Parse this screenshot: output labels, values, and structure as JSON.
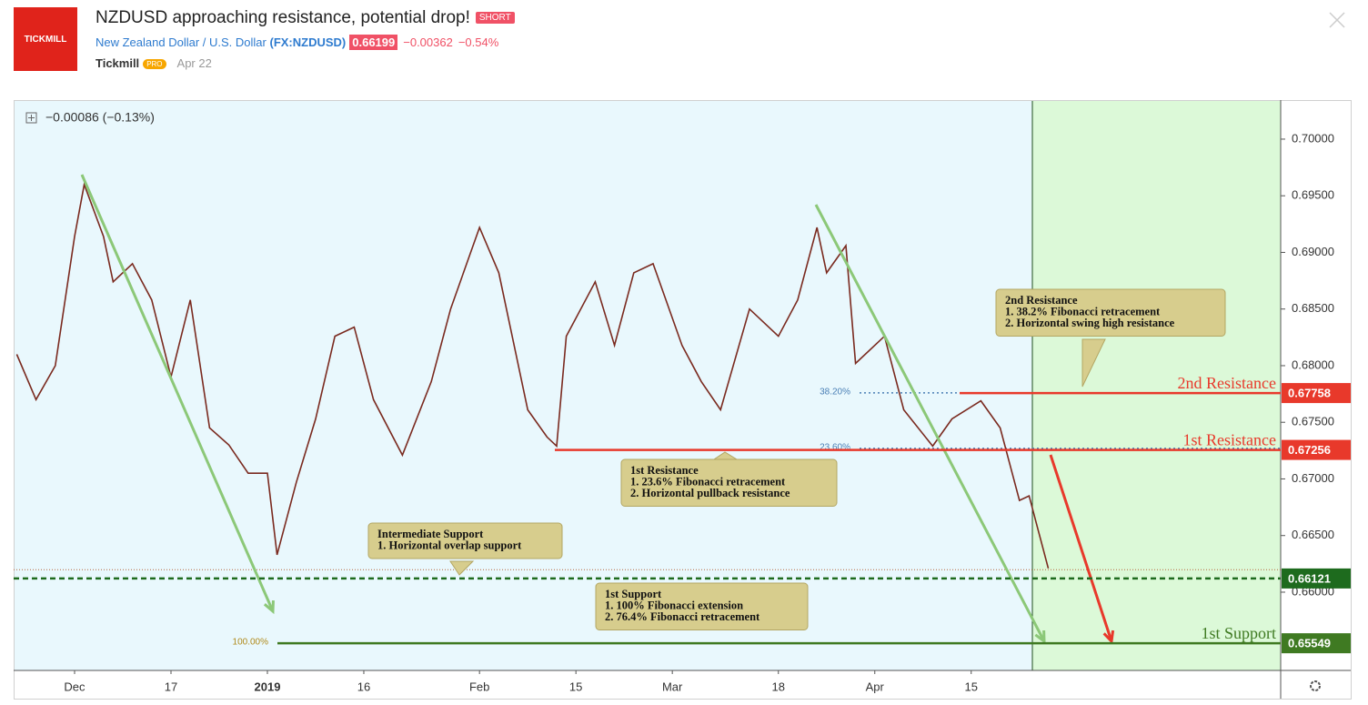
{
  "header": {
    "logo": "TICKMILL",
    "title": "NZDUSD approaching resistance, potential drop!",
    "tag": "SHORT",
    "symbol": "New Zealand Dollar / U.S. Dollar",
    "ticker": "(FX:NZDUSD)",
    "price": "0.66199",
    "change": "−0.00362",
    "change_pct": "−0.54%",
    "author": "Tickmill",
    "badge": "PRO",
    "date": "Apr 22"
  },
  "chart_data": {
    "type": "line",
    "legend": "−0.00086 (−0.13%)",
    "color": "#7a2a1f",
    "x": [
      -6,
      -4,
      -2,
      0,
      1,
      3,
      4,
      6,
      8,
      10,
      12,
      14,
      16,
      18,
      20,
      21,
      23,
      25,
      27,
      29,
      31,
      34,
      37,
      39,
      41,
      42,
      44,
      47,
      49,
      50,
      51,
      54,
      56,
      58,
      60,
      63,
      65,
      67,
      70,
      73,
      75,
      77,
      78,
      80,
      81,
      84,
      86,
      89,
      91,
      94,
      96,
      98,
      99,
      101
    ],
    "values": [
      0.681,
      0.677,
      0.68,
      0.6914,
      0.696,
      0.6914,
      0.6874,
      0.689,
      0.6858,
      0.679,
      0.6858,
      0.6745,
      0.673,
      0.6705,
      0.6705,
      0.6633,
      0.6697,
      0.6753,
      0.6826,
      0.6834,
      0.677,
      0.6721,
      0.6786,
      0.685,
      0.6898,
      0.6922,
      0.6882,
      0.6761,
      0.6737,
      0.6729,
      0.6826,
      0.6874,
      0.6818,
      0.6882,
      0.689,
      0.6818,
      0.6786,
      0.6761,
      0.685,
      0.6826,
      0.6858,
      0.6922,
      0.6882,
      0.6906,
      0.6802,
      0.6826,
      0.6761,
      0.6729,
      0.6753,
      0.6769,
      0.6745,
      0.6681,
      0.6685,
      0.6621
    ],
    "xlim": [
      -6.32,
      125.1
    ],
    "xticks": [
      {
        "value": 0,
        "label": "Dec"
      },
      {
        "value": 10,
        "label": "17"
      },
      {
        "value": 20,
        "label": "2019"
      },
      {
        "value": 30,
        "label": "16"
      },
      {
        "value": 42,
        "label": "Feb"
      },
      {
        "value": 52,
        "label": "15"
      },
      {
        "value": 62,
        "label": "Mar"
      },
      {
        "value": 73,
        "label": "18"
      },
      {
        "value": 83,
        "label": "Apr"
      },
      {
        "value": 93,
        "label": "15"
      }
    ],
    "ylim": [
      0.65309,
      0.70345
    ],
    "yticks": [
      {
        "value": 0.66,
        "label": "0.66000"
      },
      {
        "value": 0.665,
        "label": "0.66500"
      },
      {
        "value": 0.67,
        "label": "0.67000"
      },
      {
        "value": 0.675,
        "label": "0.67500"
      },
      {
        "value": 0.68,
        "label": "0.68000"
      },
      {
        "value": 0.685,
        "label": "0.68500"
      },
      {
        "value": 0.69,
        "label": "0.69000"
      },
      {
        "value": 0.695,
        "label": "0.69500"
      },
      {
        "value": 0.7,
        "label": "0.70000"
      }
    ],
    "last_price": 0.66199,
    "levels": [
      {
        "name": "2nd Resistance",
        "value": 0.67758,
        "color": "#e8392b"
      },
      {
        "name": "1st Resistance",
        "value": 0.67256,
        "color": "#e8392b"
      },
      {
        "value": 0.66121,
        "color": "#1e6b1e"
      },
      {
        "name": "1st Support",
        "value": 0.65549,
        "color": "#3f7a22"
      }
    ],
    "fib": [
      {
        "label": "38.20%",
        "value": 0.6776
      },
      {
        "label": "23.60%",
        "value": 0.6727
      },
      {
        "label": "100.00%",
        "value": 0.6555
      }
    ],
    "annotations": [
      {
        "lines": [
          "2nd Resistance",
          "1. 38.2% Fibonacci retracement",
          "2. Horizontal swing high resistance"
        ]
      },
      {
        "lines": [
          "1st Resistance",
          "1. 23.6% Fibonacci retracement",
          "2. Horizontal pullback resistance"
        ]
      },
      {
        "lines": [
          "Intermediate Support",
          "1. Horizontal overlap support"
        ]
      },
      {
        "lines": [
          "1st Support",
          "1. 100% Fibonacci extension",
          "2. 76.4% Fibonacci retracement"
        ]
      }
    ]
  }
}
